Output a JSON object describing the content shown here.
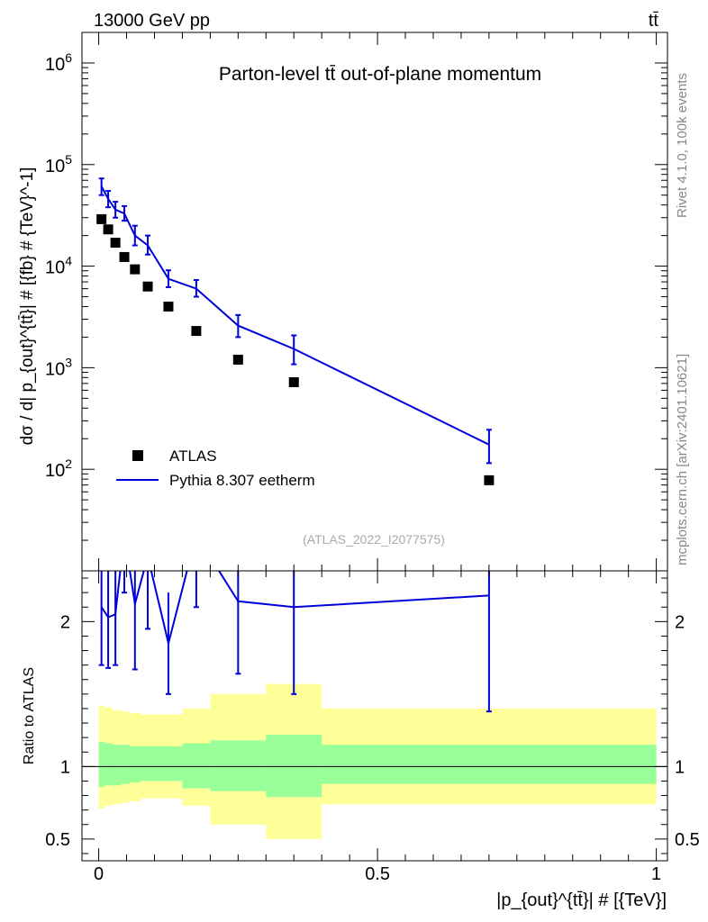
{
  "header": {
    "energy_label": "13000 GeV pp",
    "process_label": "tt̄"
  },
  "side_labels": {
    "rivet": "Rivet 4.1.0,  100k events",
    "source": "mcplots.cern.ch [arXiv:2401.10621]"
  },
  "chart_data": [
    {
      "type": "scatter",
      "panel": "main",
      "title": "Parton-level tt̄ out-of-plane momentum",
      "analysis_tag": "(ATLAS_2022_I2077575)",
      "ylabel": "dσ / d| p_{out}^{tt̄}| # [{fb} # {TeV}^-1]",
      "xlim": [
        -0.03,
        1.02
      ],
      "ylim": [
        10,
        2000000
      ],
      "yscale": "log",
      "ytick_labels": [
        "10²",
        "10³",
        "10⁴",
        "10⁵",
        "10⁶"
      ],
      "ytick_values": [
        100,
        1000,
        10000,
        100000,
        1000000
      ],
      "legend_position": "bottom-left",
      "series": [
        {
          "name": "ATLAS",
          "style": "markers",
          "color": "#000000",
          "x": [
            0.005,
            0.017,
            0.03,
            0.046,
            0.065,
            0.088,
            0.125,
            0.175,
            0.25,
            0.35,
            0.7
          ],
          "y": [
            29000,
            23000,
            17000,
            12300,
            9300,
            6300,
            4000,
            2300,
            1200,
            720,
            78
          ]
        },
        {
          "name": "Pythia 8.307 eetherm",
          "style": "line",
          "color": "#0000dd",
          "x": [
            0.005,
            0.017,
            0.03,
            0.046,
            0.065,
            0.088,
            0.125,
            0.175,
            0.25,
            0.35,
            0.7
          ],
          "y": [
            61000,
            46000,
            36000,
            33000,
            20000,
            16000,
            7500,
            6000,
            2600,
            1530,
            175
          ],
          "yerr_low": [
            11000,
            8000,
            6000,
            5000,
            4000,
            3000,
            1300,
            1000,
            600,
            450,
            60
          ],
          "yerr_high": [
            12000,
            9000,
            7000,
            6000,
            5000,
            4000,
            1600,
            1300,
            700,
            550,
            70
          ]
        }
      ]
    },
    {
      "type": "line",
      "panel": "ratio",
      "ylabel": "Ratio to ATLAS",
      "xlabel": "|p_{out}^{tt̄}| # [{TeV}]",
      "xlim": [
        -0.03,
        1.02
      ],
      "ylim": [
        0.35,
        2.35
      ],
      "xtick_labels": [
        "0",
        "0.5",
        "1"
      ],
      "xtick_values": [
        0,
        0.5,
        1
      ],
      "ytick_labels": [
        "0.5",
        "1",
        "2"
      ],
      "ytick_values": [
        0.5,
        1,
        2
      ],
      "uncertainty_bands": {
        "bin_edges": [
          0,
          0.01,
          0.025,
          0.04,
          0.055,
          0.075,
          0.1,
          0.15,
          0.2,
          0.3,
          0.4,
          1.0
        ],
        "stat_low": [
          0.86,
          0.87,
          0.87,
          0.88,
          0.89,
          0.9,
          0.9,
          0.85,
          0.83,
          0.79,
          0.88
        ],
        "stat_high": [
          1.17,
          1.16,
          1.15,
          1.15,
          1.14,
          1.14,
          1.14,
          1.16,
          1.18,
          1.22,
          1.15
        ],
        "total_low": [
          0.71,
          0.73,
          0.74,
          0.75,
          0.76,
          0.78,
          0.78,
          0.73,
          0.6,
          0.5,
          0.74
        ],
        "total_high": [
          1.42,
          1.41,
          1.39,
          1.38,
          1.37,
          1.36,
          1.36,
          1.4,
          1.5,
          1.57,
          1.4
        ],
        "stat_color": "#99ff99",
        "total_color": "#ffff99"
      },
      "series": [
        {
          "name": "Pythia 8.307 eetherm / ATLAS",
          "color": "#0000dd",
          "x": [
            0.005,
            0.017,
            0.03,
            0.046,
            0.065,
            0.088,
            0.125,
            0.175,
            0.25,
            0.35,
            0.7
          ],
          "y": [
            2.1,
            2.03,
            2.05,
            2.6,
            2.12,
            2.45,
            1.85,
            2.6,
            2.14,
            2.1,
            2.18
          ],
          "yerr_low": [
            0.4,
            0.35,
            0.35,
            0.4,
            0.45,
            0.5,
            0.35,
            0.5,
            0.5,
            0.6,
            0.8
          ],
          "yerr_high": [
            0.4,
            0.35,
            0.35,
            0.4,
            0.45,
            0.5,
            0.35,
            0.5,
            0.5,
            0.6,
            0.8
          ]
        }
      ]
    }
  ]
}
